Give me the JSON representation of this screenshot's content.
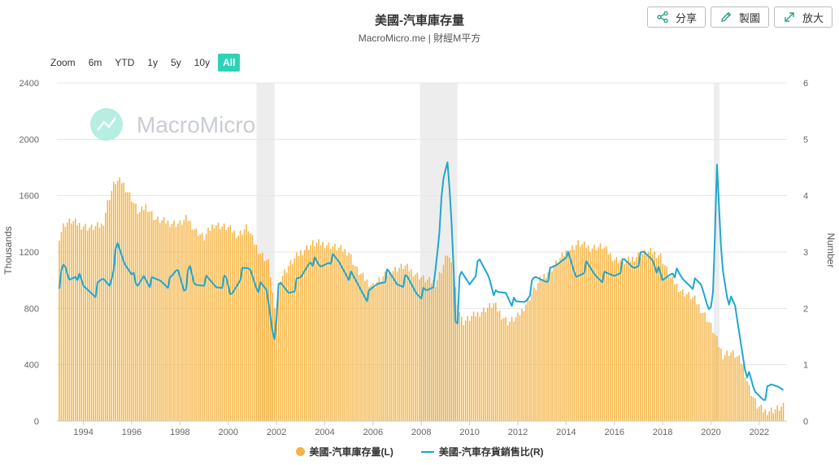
{
  "header": {
    "title": "美國-汽車庫存量",
    "subtitle": "MacroMicro.me | 財經M平方"
  },
  "toolbar": {
    "share_label": "分享",
    "chart_label": "製圖",
    "zoom_label": "放大"
  },
  "range_selector": {
    "label": "Zoom",
    "buttons": [
      "6m",
      "YTD",
      "1y",
      "5y",
      "10y",
      "All"
    ],
    "active": "All"
  },
  "watermark": "MacroMicro",
  "colors": {
    "bars": "#f5b342",
    "line": "#1ea7d0",
    "recession": "#ededed",
    "accent": "#2ed3b7"
  },
  "chart_data": {
    "type": "bar+line",
    "title": "美國-汽車庫存量",
    "subtitle": "MacroMicro.me | 財經M平方",
    "xlim": [
      1992.9,
      2023.15
    ],
    "x_ticks": [
      "1994",
      "1996",
      "1998",
      "2000",
      "2002",
      "2004",
      "2006",
      "2008",
      "2010",
      "2012",
      "2014",
      "2016",
      "2018",
      "2020",
      "2022"
    ],
    "y_left": {
      "label": "Thousands",
      "min": 0,
      "max": 2400,
      "ticks": [
        0,
        400,
        800,
        1200,
        1600,
        2000,
        2400
      ]
    },
    "y_right": {
      "label": "Number",
      "min": 0,
      "max": 6,
      "ticks": [
        0,
        1,
        2,
        3,
        4,
        5,
        6
      ]
    },
    "recessions": [
      [
        2001.17,
        2001.92
      ],
      [
        2007.95,
        2009.5
      ],
      [
        2020.12,
        2020.35
      ]
    ],
    "legend": "bottom-center",
    "grid": true,
    "series": [
      {
        "name": "美國-汽車庫存量(L)",
        "type": "bar",
        "axis": "left",
        "points": [
          [
            1993.0,
            1310
          ],
          [
            1993.2,
            1400
          ],
          [
            1993.5,
            1420
          ],
          [
            1993.9,
            1390
          ],
          [
            1994.3,
            1370
          ],
          [
            1994.8,
            1390
          ],
          [
            1995.0,
            1550
          ],
          [
            1995.3,
            1700
          ],
          [
            1995.6,
            1700
          ],
          [
            1996.0,
            1580
          ],
          [
            1996.3,
            1470
          ],
          [
            1996.6,
            1530
          ],
          [
            1997.0,
            1430
          ],
          [
            1997.5,
            1410
          ],
          [
            1998.0,
            1400
          ],
          [
            1998.3,
            1440
          ],
          [
            1998.6,
            1360
          ],
          [
            1999.0,
            1300
          ],
          [
            1999.4,
            1400
          ],
          [
            2000.0,
            1370
          ],
          [
            2000.4,
            1320
          ],
          [
            2000.8,
            1380
          ],
          [
            2001.0,
            1290
          ],
          [
            2001.3,
            1200
          ],
          [
            2001.7,
            1120
          ],
          [
            2001.95,
            720
          ],
          [
            2002.1,
            1000
          ],
          [
            2002.5,
            1100
          ],
          [
            2003.0,
            1200
          ],
          [
            2003.5,
            1260
          ],
          [
            2004.0,
            1260
          ],
          [
            2004.5,
            1230
          ],
          [
            2005.0,
            1200
          ],
          [
            2005.3,
            1080
          ],
          [
            2005.7,
            1000
          ],
          [
            2006.0,
            960
          ],
          [
            2006.4,
            1020
          ],
          [
            2006.8,
            1070
          ],
          [
            2007.3,
            1100
          ],
          [
            2007.8,
            1040
          ],
          [
            2008.2,
            1000
          ],
          [
            2008.6,
            980
          ],
          [
            2008.9,
            1100
          ],
          [
            2009.1,
            1200
          ],
          [
            2009.3,
            1060
          ],
          [
            2009.55,
            800
          ],
          [
            2009.7,
            700
          ],
          [
            2010.0,
            730
          ],
          [
            2010.5,
            780
          ],
          [
            2011.0,
            830
          ],
          [
            2011.3,
            760
          ],
          [
            2011.6,
            700
          ],
          [
            2012.0,
            740
          ],
          [
            2012.5,
            880
          ],
          [
            2013.0,
            1020
          ],
          [
            2013.5,
            1100
          ],
          [
            2014.0,
            1200
          ],
          [
            2014.5,
            1260
          ],
          [
            2015.0,
            1230
          ],
          [
            2015.5,
            1240
          ],
          [
            2016.0,
            1150
          ],
          [
            2016.5,
            1130
          ],
          [
            2017.0,
            1180
          ],
          [
            2017.5,
            1200
          ],
          [
            2017.9,
            1180
          ],
          [
            2018.3,
            1020
          ],
          [
            2018.8,
            920
          ],
          [
            2019.3,
            870
          ],
          [
            2019.8,
            740
          ],
          [
            2020.1,
            640
          ],
          [
            2020.3,
            550
          ],
          [
            2020.5,
            470
          ],
          [
            2020.8,
            490
          ],
          [
            2021.0,
            470
          ],
          [
            2021.3,
            410
          ],
          [
            2021.6,
            230
          ],
          [
            2021.9,
            110
          ],
          [
            2022.2,
            70
          ],
          [
            2022.6,
            80
          ],
          [
            2023.0,
            100
          ]
        ]
      },
      {
        "name": "美國-汽車存貨銷售比(R)",
        "type": "line",
        "axis": "right",
        "points": [
          [
            1993.0,
            2.45
          ],
          [
            1993.2,
            2.75
          ],
          [
            1993.4,
            2.5
          ],
          [
            1993.7,
            2.65
          ],
          [
            1994.0,
            2.35
          ],
          [
            1994.5,
            2.3
          ],
          [
            1994.8,
            2.5
          ],
          [
            1995.1,
            2.45
          ],
          [
            1995.4,
            3.1
          ],
          [
            1995.7,
            2.8
          ],
          [
            1996.0,
            2.7
          ],
          [
            1996.2,
            2.3
          ],
          [
            1996.5,
            2.6
          ],
          [
            1996.8,
            2.45
          ],
          [
            1997.2,
            2.5
          ],
          [
            1997.6,
            2.45
          ],
          [
            1997.9,
            2.7
          ],
          [
            1998.2,
            2.35
          ],
          [
            1998.4,
            2.7
          ],
          [
            1998.6,
            2.4
          ],
          [
            1999.0,
            2.5
          ],
          [
            1999.5,
            2.4
          ],
          [
            1999.9,
            2.5
          ],
          [
            2000.1,
            2.2
          ],
          [
            2000.5,
            2.6
          ],
          [
            2000.9,
            2.7
          ],
          [
            2001.2,
            2.4
          ],
          [
            2001.6,
            2.3
          ],
          [
            2001.9,
            1.45
          ],
          [
            2002.1,
            2.4
          ],
          [
            2002.5,
            2.3
          ],
          [
            2003.0,
            2.5
          ],
          [
            2003.4,
            2.9
          ],
          [
            2003.8,
            2.7
          ],
          [
            2004.2,
            2.9
          ],
          [
            2004.6,
            2.8
          ],
          [
            2005.0,
            2.6
          ],
          [
            2005.4,
            2.4
          ],
          [
            2005.8,
            2.2
          ],
          [
            2006.2,
            2.45
          ],
          [
            2006.6,
            2.6
          ],
          [
            2007.0,
            2.45
          ],
          [
            2007.4,
            2.5
          ],
          [
            2007.8,
            2.3
          ],
          [
            2008.2,
            2.25
          ],
          [
            2008.5,
            2.4
          ],
          [
            2008.7,
            3.2
          ],
          [
            2008.9,
            4.2
          ],
          [
            2009.1,
            4.6
          ],
          [
            2009.3,
            3.2
          ],
          [
            2009.45,
            1.45
          ],
          [
            2009.6,
            2.6
          ],
          [
            2010.0,
            2.45
          ],
          [
            2010.4,
            2.8
          ],
          [
            2010.8,
            2.6
          ],
          [
            2011.1,
            2.2
          ],
          [
            2011.5,
            2.3
          ],
          [
            2011.9,
            2.05
          ],
          [
            2012.3,
            2.15
          ],
          [
            2012.7,
            2.5
          ],
          [
            2013.2,
            2.55
          ],
          [
            2013.6,
            2.75
          ],
          [
            2014.0,
            3.0
          ],
          [
            2014.4,
            2.55
          ],
          [
            2014.8,
            2.75
          ],
          [
            2015.2,
            2.6
          ],
          [
            2015.6,
            2.55
          ],
          [
            2016.0,
            2.6
          ],
          [
            2016.4,
            2.8
          ],
          [
            2016.8,
            2.75
          ],
          [
            2017.2,
            2.95
          ],
          [
            2017.6,
            2.9
          ],
          [
            2018.0,
            2.45
          ],
          [
            2018.4,
            2.7
          ],
          [
            2018.8,
            2.5
          ],
          [
            2019.2,
            2.45
          ],
          [
            2019.6,
            2.4
          ],
          [
            2019.9,
            2.05
          ],
          [
            2020.1,
            2.2
          ],
          [
            2020.25,
            4.5
          ],
          [
            2020.45,
            2.8
          ],
          [
            2020.7,
            2.2
          ],
          [
            2021.0,
            2.0
          ],
          [
            2021.4,
            1.0
          ],
          [
            2021.8,
            0.5
          ],
          [
            2022.2,
            0.45
          ],
          [
            2022.5,
            0.6
          ],
          [
            2022.8,
            0.65
          ],
          [
            2023.0,
            0.65
          ]
        ]
      }
    ]
  }
}
